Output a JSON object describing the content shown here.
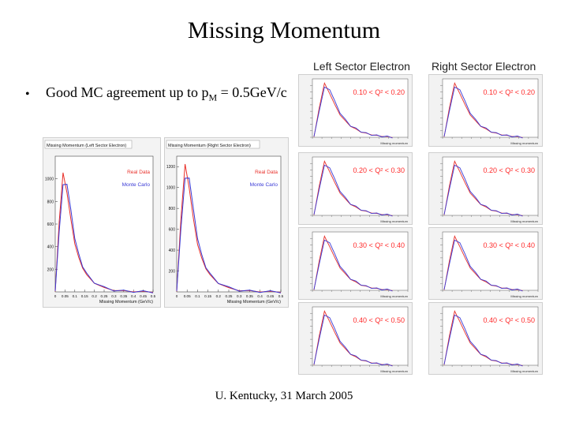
{
  "slide": {
    "title": "Missing Momentum",
    "bullet_prefix": "Good MC agreement up to p",
    "bullet_sub": "M",
    "bullet_suffix": " = 0.5GeV/c",
    "footer": "U. Kentucky, 31 March 2005"
  },
  "columns": {
    "left": "Left Sector Electron",
    "right": "Right Sector Electron"
  },
  "colors": {
    "real": "#e8302a",
    "mc": "#3a3ad6",
    "q2_text": "#ff2a2a",
    "frame": "#cfcfcf"
  },
  "chart_data": [
    {
      "type": "line",
      "title": "Missing Momentum (Left Sector Electron)",
      "xlabel": "Missing Momentum (GeV/c)",
      "x_ticks": [
        "0",
        "0.05",
        "0.1",
        "0.15",
        "0.2",
        "0.25",
        "0.3",
        "0.35",
        "0.4",
        "0.45",
        "0.5"
      ],
      "y_ticks": [
        "200",
        "400",
        "600",
        "800",
        "1000"
      ],
      "ylim": [
        0,
        1200
      ],
      "series": [
        {
          "name": "Real Data",
          "x": [
            0,
            0.02,
            0.04,
            0.06,
            0.08,
            0.1,
            0.12,
            0.14,
            0.16,
            0.2,
            0.25,
            0.3,
            0.35,
            0.4,
            0.45,
            0.5
          ],
          "values": [
            0,
            620,
            1050,
            880,
            640,
            430,
            300,
            215,
            150,
            80,
            35,
            15,
            8,
            4,
            2,
            0
          ]
        },
        {
          "name": "Monte Carlo",
          "x": [
            0,
            0.02,
            0.04,
            0.06,
            0.08,
            0.1,
            0.12,
            0.14,
            0.16,
            0.2,
            0.25,
            0.3,
            0.35,
            0.4,
            0.45,
            0.5
          ],
          "values": [
            0,
            540,
            940,
            960,
            720,
            480,
            330,
            230,
            160,
            85,
            38,
            16,
            8,
            4,
            2,
            0
          ]
        }
      ]
    },
    {
      "type": "line",
      "title": "Missing Momentum (Right Sector Electron)",
      "xlabel": "Missing Momentum (GeV/c)",
      "x_ticks": [
        "0",
        "0.05",
        "0.1",
        "0.15",
        "0.2",
        "0.25",
        "0.3",
        "0.35",
        "0.4",
        "0.45",
        "0.5"
      ],
      "y_ticks": [
        "200",
        "400",
        "600",
        "800",
        "1000",
        "1200"
      ],
      "ylim": [
        0,
        1300
      ],
      "series": [
        {
          "name": "Real Data",
          "x": [
            0,
            0.02,
            0.04,
            0.06,
            0.08,
            0.1,
            0.12,
            0.14,
            0.16,
            0.2,
            0.25,
            0.3,
            0.35,
            0.4,
            0.45,
            0.5
          ],
          "values": [
            0,
            700,
            1220,
            1000,
            700,
            460,
            320,
            225,
            160,
            85,
            36,
            15,
            8,
            4,
            2,
            0
          ]
        },
        {
          "name": "Monte Carlo",
          "x": [
            0,
            0.02,
            0.04,
            0.06,
            0.08,
            0.1,
            0.12,
            0.14,
            0.16,
            0.2,
            0.25,
            0.3,
            0.35,
            0.4,
            0.45,
            0.5
          ],
          "values": [
            0,
            610,
            1080,
            1100,
            790,
            520,
            350,
            240,
            170,
            90,
            40,
            16,
            8,
            4,
            2,
            0
          ]
        }
      ]
    }
  ],
  "small_plots": {
    "xlabel": "Missing momentum",
    "rows": [
      {
        "q2_label": "0.10 < Q² < 0.20"
      },
      {
        "q2_label": "0.20 < Q² < 0.30"
      },
      {
        "q2_label": "0.30 < Q² < 0.40"
      },
      {
        "q2_label": "0.40 < Q² < 0.50"
      }
    ],
    "real_shape": [
      0,
      0.55,
      1.0,
      0.82,
      0.6,
      0.42,
      0.3,
      0.21,
      0.15,
      0.1,
      0.07,
      0.05,
      0.03,
      0.02,
      0.01,
      0
    ],
    "mc_shape": [
      0,
      0.5,
      0.92,
      0.9,
      0.66,
      0.46,
      0.32,
      0.22,
      0.16,
      0.11,
      0.07,
      0.05,
      0.03,
      0.02,
      0.01,
      0
    ]
  }
}
